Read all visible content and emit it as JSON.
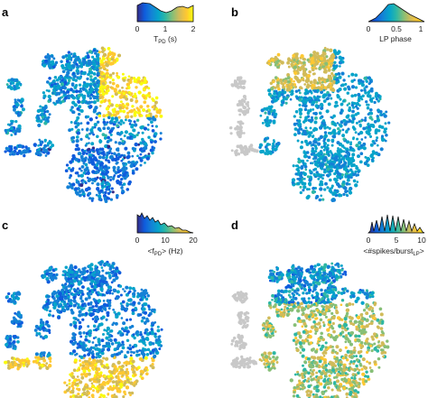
{
  "panels": [
    {
      "letter": "a",
      "colorbar": {
        "ticks": [
          "0",
          "1",
          "2"
        ],
        "label_main": "T",
        "label_sub": "PD",
        "label_tail": " (s)",
        "histogram": "high left shoulder, dip, rising right edge"
      },
      "map_palette": "parula",
      "grey_clusters": false
    },
    {
      "letter": "b",
      "colorbar": {
        "ticks": [
          "0",
          "0.5",
          "1"
        ],
        "label_main": "LP phase",
        "label_sub": "",
        "label_tail": "",
        "histogram": "peak near 0.3, long right tail"
      },
      "map_palette": "parula",
      "grey_clusters": true
    },
    {
      "letter": "c",
      "colorbar": {
        "ticks": [
          "0",
          "10",
          "20"
        ],
        "label_main": "<f",
        "label_sub": "PD",
        "label_tail": "> (Hz)",
        "histogram": "decaying with many spikes"
      },
      "map_palette": "parula",
      "grey_clusters": false
    },
    {
      "letter": "d",
      "colorbar": {
        "ticks": [
          "0",
          "5",
          "10"
        ],
        "label_main": "<#spikes/burst",
        "label_sub": "LP",
        "label_tail": ">",
        "histogram": "comb of peaks at integer values"
      },
      "map_palette": "parula",
      "grey_clusters": true
    }
  ],
  "colors": {
    "parula": [
      "#352a87",
      "#0f5cdd",
      "#1481d6",
      "#06a4ca",
      "#2eb7a4",
      "#87bf77",
      "#d1bb59",
      "#fec832",
      "#f9fb0e"
    ],
    "grey_cluster": "#c8c8c8",
    "histogram_fill": "#111111"
  }
}
